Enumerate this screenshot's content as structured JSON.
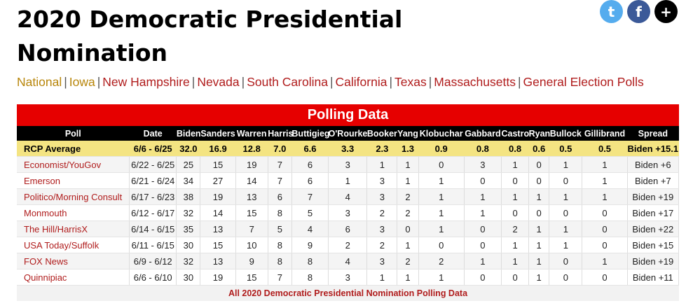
{
  "page": {
    "title": "2020 Democratic Presidential Nomination"
  },
  "social": [
    {
      "icon": "twitter-icon",
      "glyph": "t",
      "color": "#55acee"
    },
    {
      "icon": "facebook-icon",
      "glyph": "f",
      "color": "#3b5998"
    },
    {
      "icon": "plus-icon",
      "glyph": "+",
      "color": "#000000"
    }
  ],
  "nav": [
    {
      "label": "National",
      "color": "#b8860b"
    },
    {
      "label": "Iowa",
      "color": "#b8860b"
    },
    {
      "label": "New Hampshire",
      "color": "#b01c1c"
    },
    {
      "label": "Nevada",
      "color": "#b01c1c"
    },
    {
      "label": "South Carolina",
      "color": "#b01c1c"
    },
    {
      "label": "California",
      "color": "#b01c1c"
    },
    {
      "label": "Texas",
      "color": "#b01c1c"
    },
    {
      "label": "Massachusetts",
      "color": "#b01c1c"
    },
    {
      "label": "General Election Polls",
      "color": "#b01c1c"
    }
  ],
  "nav_separator": "|",
  "table": {
    "title": "Polling Data",
    "columns": [
      "Poll",
      "Date",
      "Biden",
      "Sanders",
      "Warren",
      "Harris",
      "Buttigieg",
      "O'Rourke",
      "Booker",
      "Yang",
      "Klobuchar",
      "Gabbard",
      "Castro",
      "Ryan",
      "Bullock",
      "Gillibrand",
      "Spread"
    ],
    "rcp": [
      "RCP Average",
      "6/6 - 6/25",
      "32.0",
      "16.9",
      "12.8",
      "7.0",
      "6.6",
      "3.3",
      "2.3",
      "1.3",
      "0.9",
      "0.8",
      "0.8",
      "0.6",
      "0.5",
      "0.5",
      "Biden +15.1"
    ],
    "rows": [
      [
        "Economist/YouGov",
        "6/22 - 6/25",
        "25",
        "15",
        "19",
        "7",
        "6",
        "3",
        "1",
        "1",
        "0",
        "3",
        "1",
        "0",
        "1",
        "1",
        "Biden +6"
      ],
      [
        "Emerson",
        "6/21 - 6/24",
        "34",
        "27",
        "14",
        "7",
        "6",
        "1",
        "3",
        "1",
        "1",
        "0",
        "0",
        "0",
        "0",
        "1",
        "Biden +7"
      ],
      [
        "Politico/Morning Consult",
        "6/17 - 6/23",
        "38",
        "19",
        "13",
        "6",
        "7",
        "4",
        "3",
        "2",
        "1",
        "1",
        "1",
        "1",
        "1",
        "1",
        "Biden +19"
      ],
      [
        "Monmouth",
        "6/12 - 6/17",
        "32",
        "14",
        "15",
        "8",
        "5",
        "3",
        "2",
        "2",
        "1",
        "1",
        "0",
        "0",
        "0",
        "0",
        "Biden +17"
      ],
      [
        "The Hill/HarrisX",
        "6/14 - 6/15",
        "35",
        "13",
        "7",
        "5",
        "4",
        "6",
        "3",
        "0",
        "1",
        "0",
        "2",
        "1",
        "1",
        "0",
        "Biden +22"
      ],
      [
        "USA Today/Suffolk",
        "6/11 - 6/15",
        "30",
        "15",
        "10",
        "8",
        "9",
        "2",
        "2",
        "1",
        "0",
        "0",
        "1",
        "1",
        "1",
        "0",
        "Biden +15"
      ],
      [
        "FOX News",
        "6/9 - 6/12",
        "32",
        "13",
        "9",
        "8",
        "8",
        "4",
        "3",
        "2",
        "2",
        "1",
        "1",
        "1",
        "0",
        "1",
        "Biden +19"
      ],
      [
        "Quinnipiac",
        "6/6 - 6/10",
        "30",
        "19",
        "15",
        "7",
        "8",
        "3",
        "1",
        "1",
        "1",
        "0",
        "0",
        "1",
        "0",
        "0",
        "Biden +11"
      ]
    ],
    "footer_link": "All 2020 Democratic Presidential Nomination Polling Data"
  }
}
